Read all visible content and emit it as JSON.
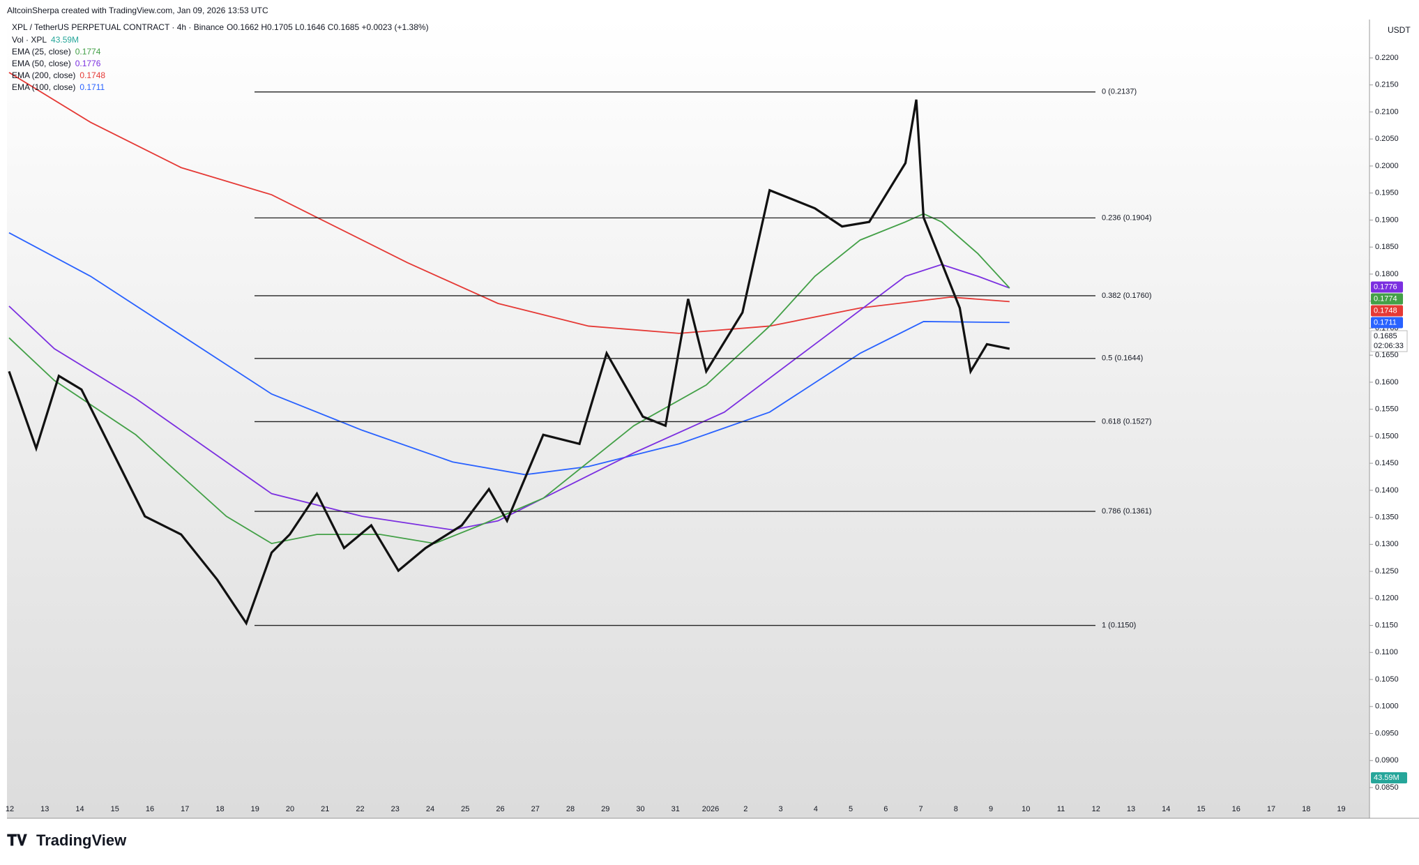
{
  "header": {
    "credit": "AltcoinSherpa created with TradingView.com, Jan 09, 2026 13:53 UTC",
    "symbol": "XPL / TetherUS PERPETUAL CONTRACT · 4h · Binance",
    "ohlc": "O0.1662 H0.1705 L0.1646 C0.1685 +0.0023 (+1.38%)"
  },
  "legend": [
    {
      "label": "Vol · XPL",
      "value": "43.59M",
      "color": "#26a69a"
    },
    {
      "label": "EMA (25, close)",
      "value": "0.1774",
      "color": "#43a047"
    },
    {
      "label": "EMA (50, close)",
      "value": "0.1776",
      "color": "#7b2fe0"
    },
    {
      "label": "EMA (200, close)",
      "value": "0.1748",
      "color": "#e53935"
    },
    {
      "label": "EMA (100, close)",
      "value": "0.1711",
      "color": "#2962ff"
    }
  ],
  "axis": {
    "currency": "USDT",
    "ylim": [
      0.085,
      0.22
    ],
    "yticks": [
      {
        "value": 0.22,
        "label": "0.2200"
      },
      {
        "value": 0.215,
        "label": "0.2150"
      },
      {
        "value": 0.21,
        "label": "0.2100"
      },
      {
        "value": 0.205,
        "label": "0.2050"
      },
      {
        "value": 0.2,
        "label": "0.2000"
      },
      {
        "value": 0.195,
        "label": "0.1950"
      },
      {
        "value": 0.19,
        "label": "0.1900"
      },
      {
        "value": 0.185,
        "label": "0.1850"
      },
      {
        "value": 0.18,
        "label": "0.1800"
      },
      {
        "value": 0.175,
        "label": "0.1750"
      },
      {
        "value": 0.17,
        "label": "0.1700"
      },
      {
        "value": 0.165,
        "label": "0.1650"
      },
      {
        "value": 0.16,
        "label": "0.1600"
      },
      {
        "value": 0.155,
        "label": "0.1550"
      },
      {
        "value": 0.15,
        "label": "0.1500"
      },
      {
        "value": 0.145,
        "label": "0.1450"
      },
      {
        "value": 0.14,
        "label": "0.1400"
      },
      {
        "value": 0.135,
        "label": "0.1350"
      },
      {
        "value": 0.13,
        "label": "0.1300"
      },
      {
        "value": 0.125,
        "label": "0.1250"
      },
      {
        "value": 0.12,
        "label": "0.1200"
      },
      {
        "value": 0.115,
        "label": "0.1150"
      },
      {
        "value": 0.11,
        "label": "0.1100"
      },
      {
        "value": 0.105,
        "label": "0.1050"
      },
      {
        "value": 0.1,
        "label": "0.1000"
      },
      {
        "value": 0.095,
        "label": "0.0950"
      },
      {
        "value": 0.09,
        "label": "0.0900"
      },
      {
        "value": 0.085,
        "label": "0.0850"
      }
    ],
    "xlabels": [
      "12",
      "13",
      "14",
      "15",
      "16",
      "17",
      "18",
      "19",
      "20",
      "21",
      "22",
      "23",
      "24",
      "25",
      "26",
      "27",
      "28",
      "29",
      "30",
      "31",
      "2026",
      "2",
      "3",
      "4",
      "5",
      "6",
      "7",
      "8",
      "9",
      "10",
      "11",
      "12",
      "13",
      "14",
      "15",
      "16",
      "17",
      "18",
      "19"
    ]
  },
  "fib_levels": [
    {
      "value": 0.2137,
      "label": "0 (0.2137)"
    },
    {
      "value": 0.1904,
      "label": "0.236 (0.1904)"
    },
    {
      "value": 0.176,
      "label": "0.382 (0.1760)"
    },
    {
      "value": 0.1644,
      "label": "0.5 (0.1644)"
    },
    {
      "value": 0.1527,
      "label": "0.618 (0.1527)"
    },
    {
      "value": 0.1361,
      "label": "0.786 (0.1361)"
    },
    {
      "value": 0.115,
      "label": "1 (0.1150)"
    }
  ],
  "price_tags": [
    {
      "value": 0.1776,
      "color": "#7b2fe0"
    },
    {
      "value": 0.1774,
      "color": "#43a047"
    },
    {
      "value": 0.1748,
      "color": "#e53935"
    },
    {
      "value": 0.1711,
      "color": "#2962ff"
    }
  ],
  "last_price": {
    "value": 0.1685,
    "countdown": "02:06:33"
  },
  "volume_tag": "43.59M",
  "brand": "TradingView"
}
